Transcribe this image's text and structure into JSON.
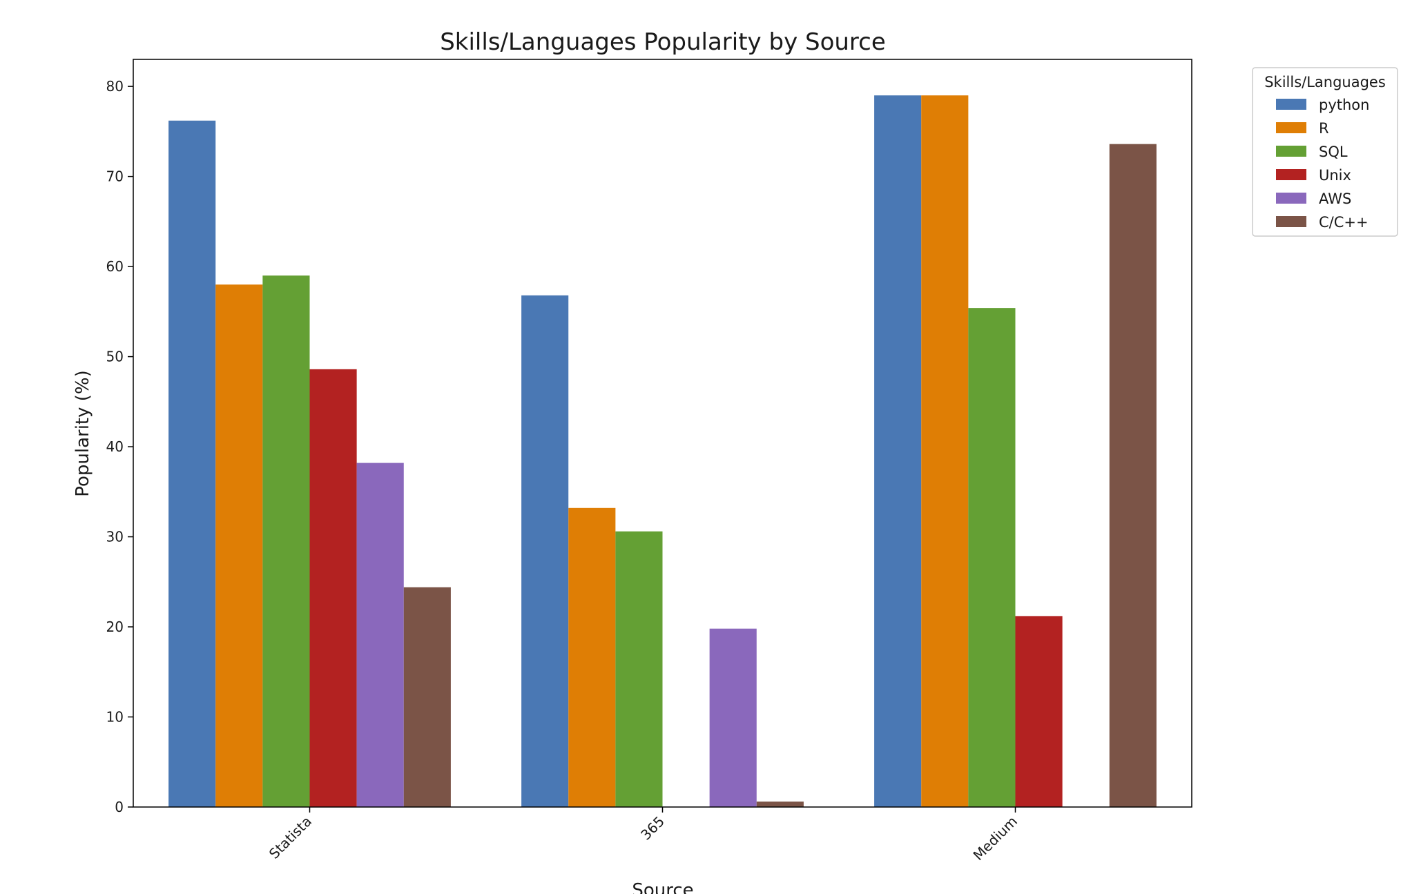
{
  "chart_data": {
    "type": "bar",
    "title": "Skills/Languages Popularity by Source",
    "xlabel": "Source",
    "ylabel": "Popularity (%)",
    "categories": [
      "Statista",
      "365",
      "Medium"
    ],
    "ylim": [
      0,
      83
    ],
    "yticks": [
      0,
      10,
      20,
      30,
      40,
      50,
      60,
      70,
      80
    ],
    "grid": false,
    "legend": {
      "title": "Skills/Languages",
      "placement": "outside-top-right"
    },
    "series": [
      {
        "name": "python",
        "color": "#4a78b4",
        "values": [
          76.2,
          56.8,
          79.0
        ]
      },
      {
        "name": "R",
        "color": "#df7e05",
        "values": [
          58.0,
          33.2,
          79.0
        ]
      },
      {
        "name": "SQL",
        "color": "#64a034",
        "values": [
          59.0,
          30.6,
          55.4
        ]
      },
      {
        "name": "Unix",
        "color": "#b32221",
        "values": [
          48.6,
          null,
          21.2
        ]
      },
      {
        "name": "AWS",
        "color": "#8a68bc",
        "values": [
          38.2,
          19.8,
          null
        ]
      },
      {
        "name": "C/C++",
        "color": "#7b5447",
        "values": [
          24.4,
          0.6,
          73.6
        ]
      }
    ]
  }
}
